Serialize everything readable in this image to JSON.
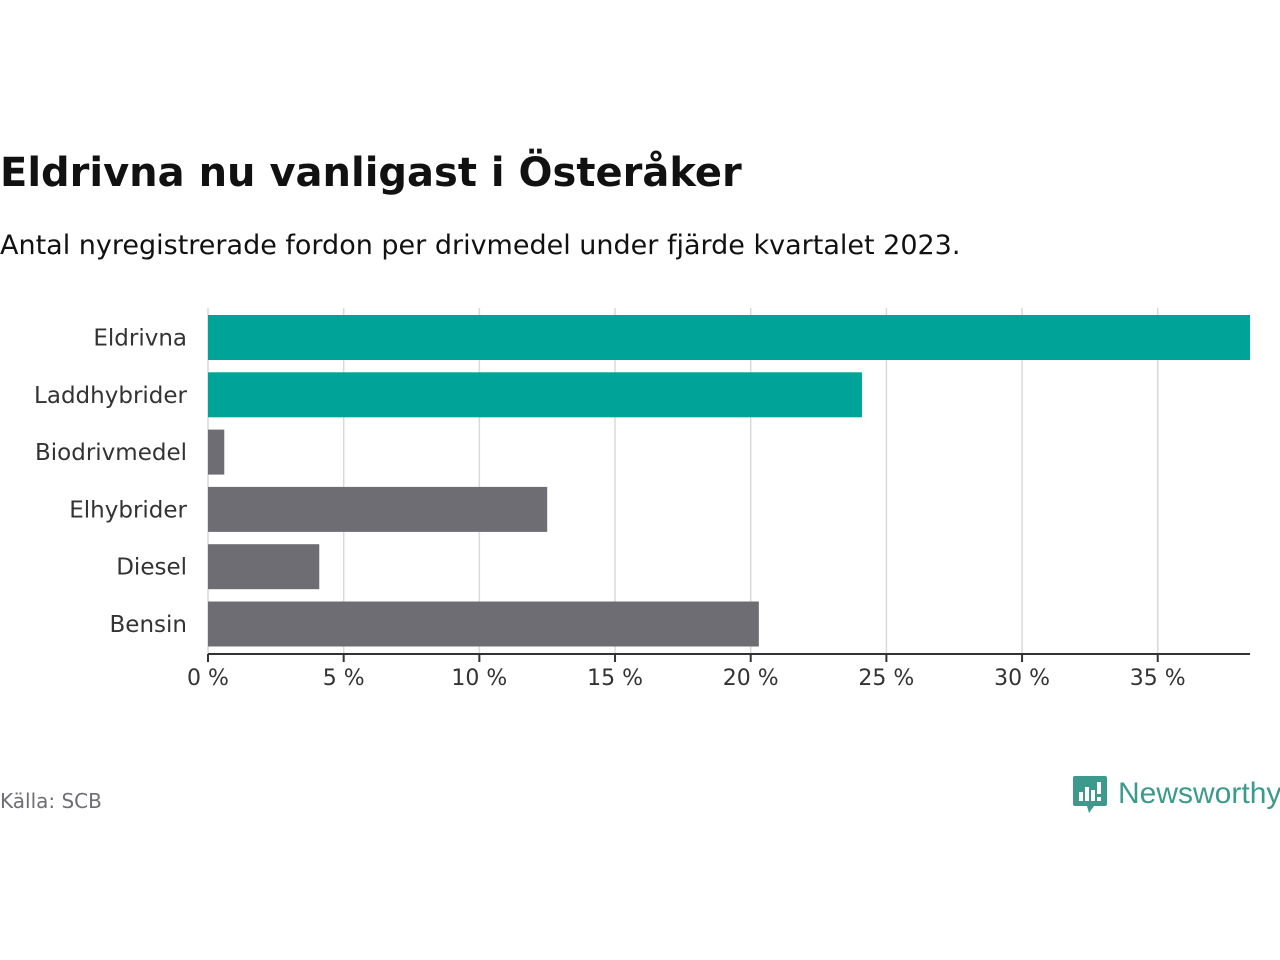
{
  "title": "Eldrivna nu vanligast i Österåker",
  "subtitle": "Antal nyregistrerade fordon per drivmedel under fjärde kvartalet 2023.",
  "source": "Källa: SCB",
  "brand": {
    "name": "Newsworthy",
    "icon": "newsworthy-chart-icon",
    "color": "#3b9a8c"
  },
  "colors": {
    "highlight": "#00a398",
    "muted": "#6e6d74",
    "grid": "#d9d9d9",
    "axis": "#333333"
  },
  "chart_data": {
    "type": "bar",
    "orientation": "horizontal",
    "title": "Eldrivna nu vanligast i Österåker",
    "subtitle": "Antal nyregistrerade fordon per drivmedel under fjärde kvartalet 2023.",
    "xlabel": "",
    "ylabel": "",
    "grid": true,
    "xlim": [
      0,
      38.4
    ],
    "xticks": [
      0,
      5,
      10,
      15,
      20,
      25,
      30,
      35
    ],
    "xtick_labels": [
      "0 %",
      "5 %",
      "10 %",
      "15 %",
      "20 %",
      "25 %",
      "30 %",
      "35 %"
    ],
    "categories": [
      "Eldrivna",
      "Laddhybrider",
      "Biodrivmedel",
      "Elhybrider",
      "Diesel",
      "Bensin"
    ],
    "values": [
      38.4,
      24.1,
      0.6,
      12.5,
      4.1,
      20.3
    ],
    "highlighted": [
      true,
      true,
      false,
      false,
      false,
      false
    ]
  }
}
